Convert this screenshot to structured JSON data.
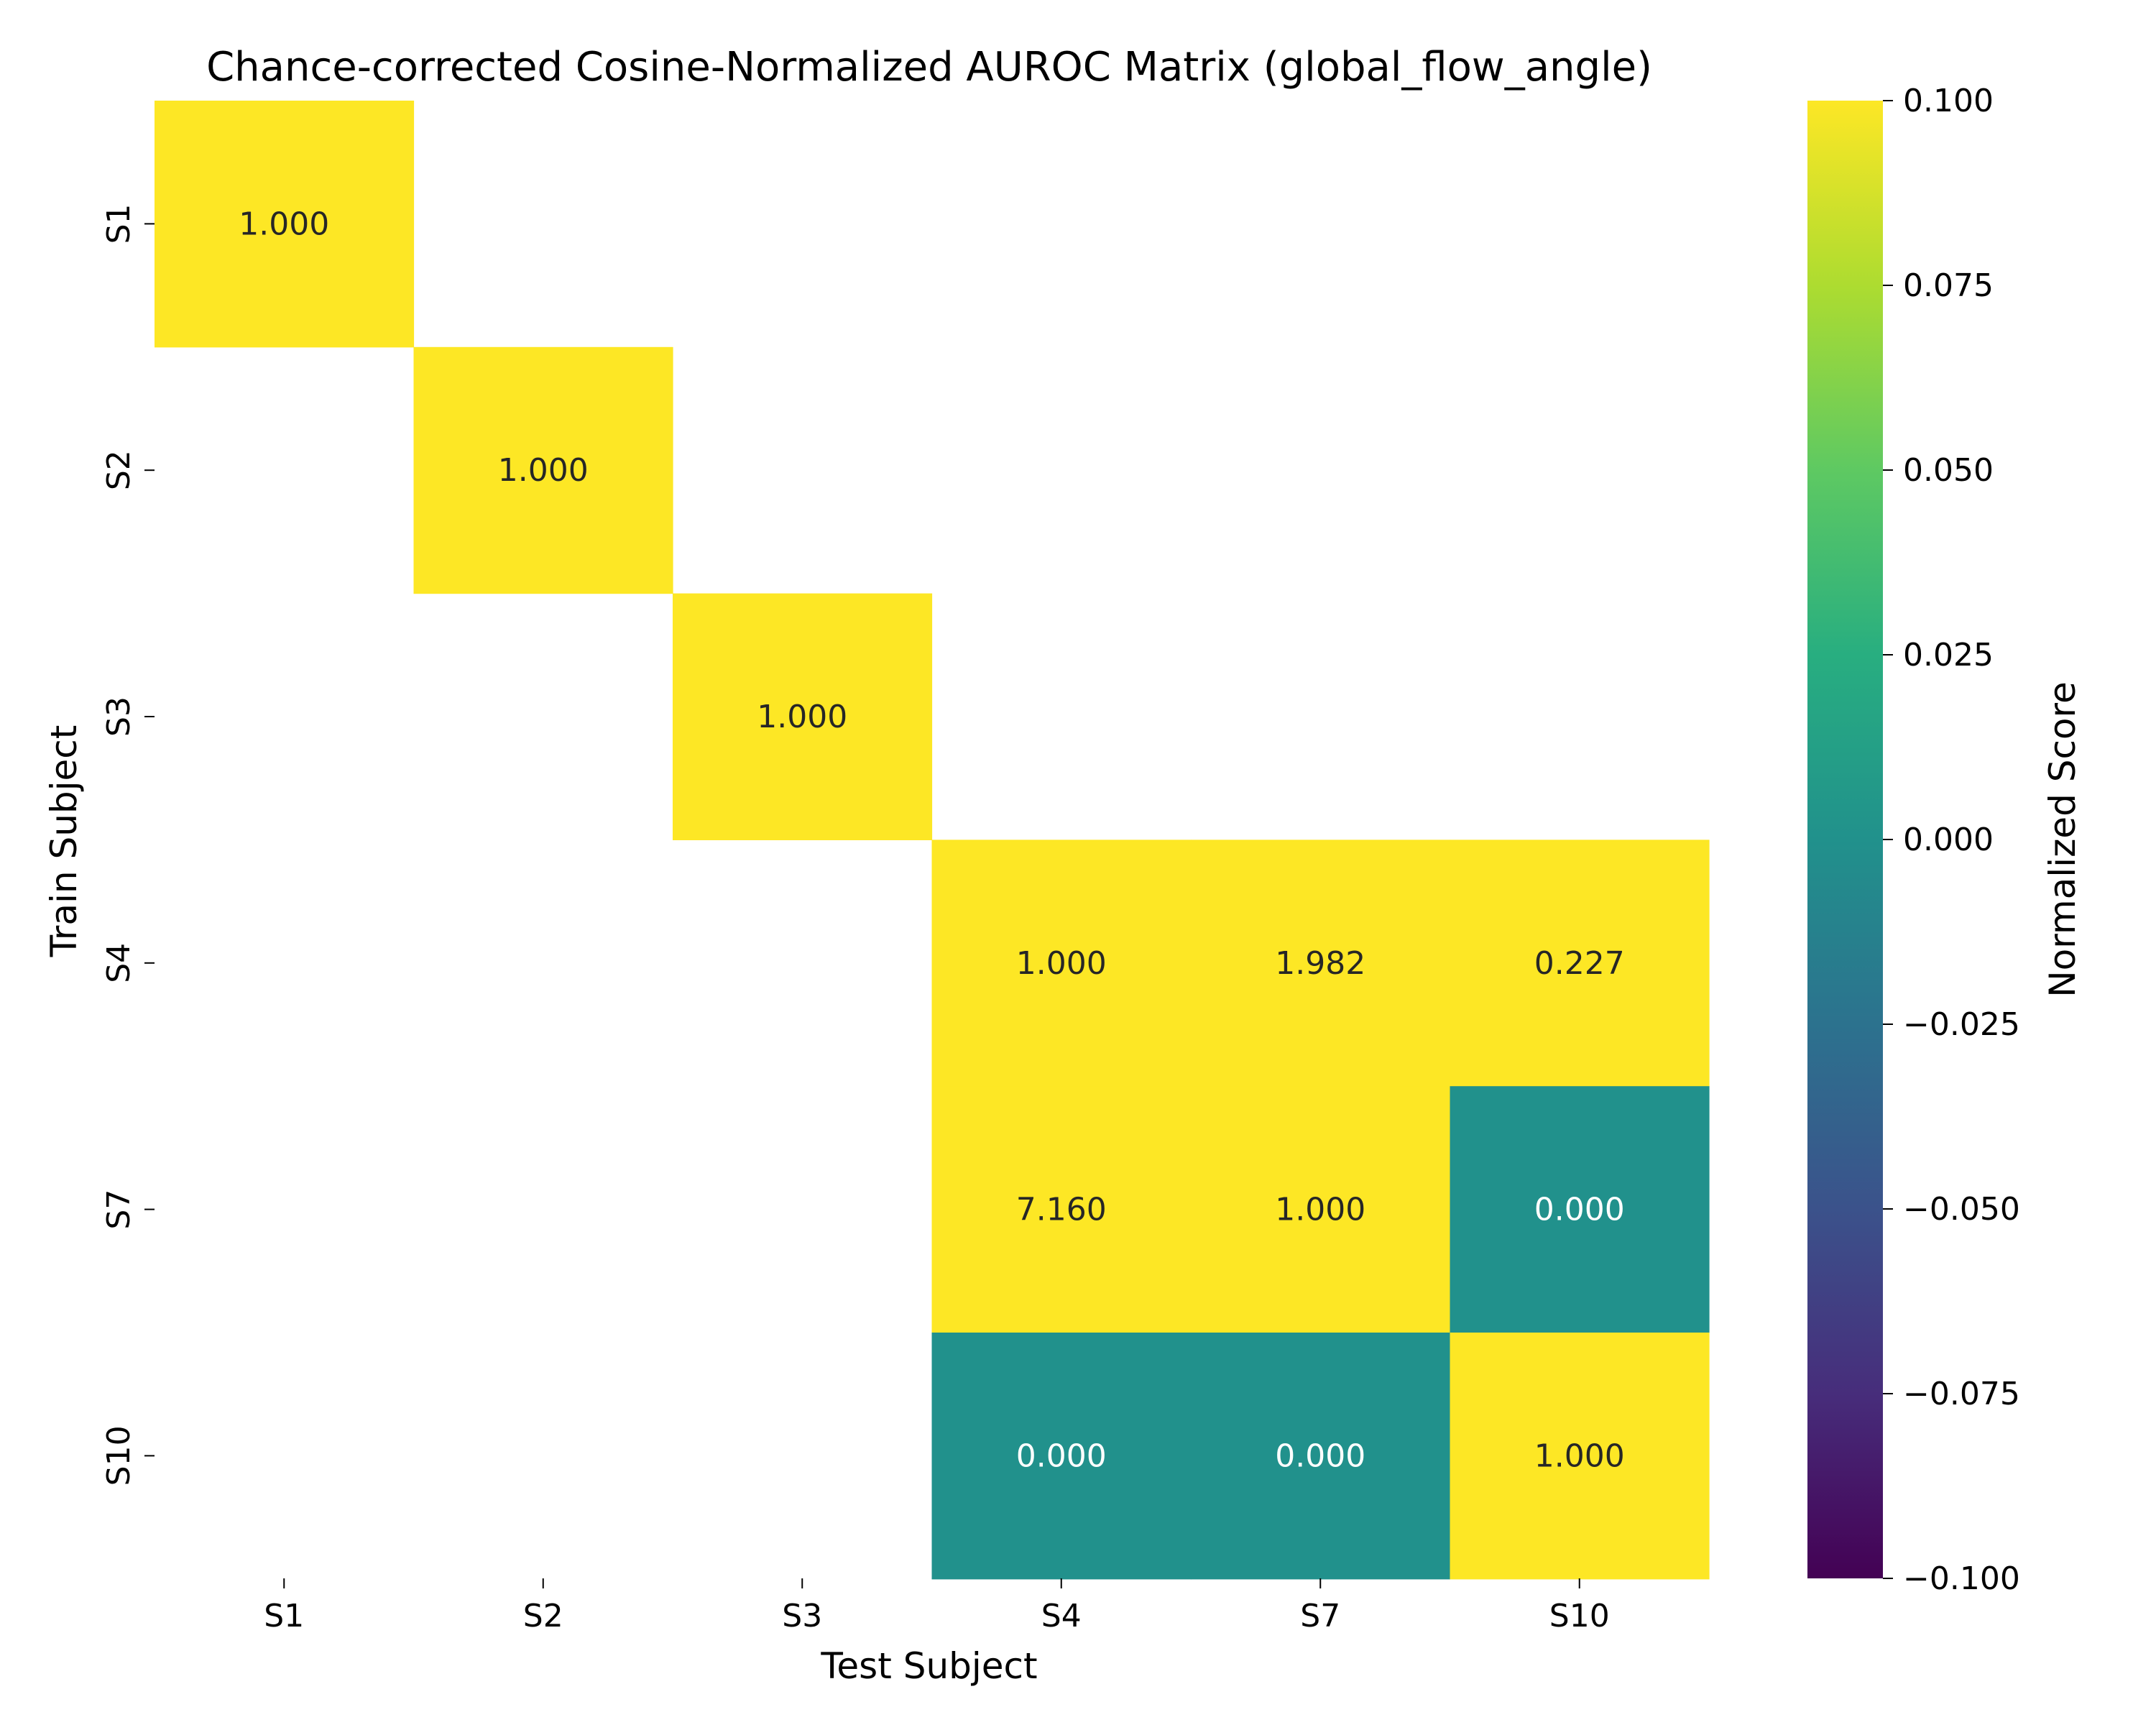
{
  "chart_data": {
    "type": "heatmap",
    "title": "Chance-corrected Cosine-Normalized AUROC Matrix (global_flow_angle)",
    "xlabel": "Test Subject",
    "ylabel": "Train Subject",
    "x_categories": [
      "S1",
      "S2",
      "S3",
      "S4",
      "S7",
      "S10"
    ],
    "y_categories": [
      "S1",
      "S2",
      "S3",
      "S4",
      "S7",
      "S10"
    ],
    "values": [
      [
        1.0,
        null,
        null,
        null,
        null,
        null
      ],
      [
        null,
        1.0,
        null,
        null,
        null,
        null
      ],
      [
        null,
        null,
        1.0,
        null,
        null,
        null
      ],
      [
        null,
        null,
        null,
        1.0,
        1.982,
        0.227
      ],
      [
        null,
        null,
        null,
        7.16,
        1.0,
        0.0
      ],
      [
        null,
        null,
        null,
        0.0,
        0.0,
        1.0
      ]
    ],
    "cell_labels": [
      [
        "1.000",
        "",
        "",
        "",
        "",
        ""
      ],
      [
        "",
        "1.000",
        "",
        "",
        "",
        ""
      ],
      [
        "",
        "",
        "1.000",
        "",
        "",
        ""
      ],
      [
        "",
        "",
        "",
        "1.000",
        "1.982",
        "0.227"
      ],
      [
        "",
        "",
        "",
        "7.160",
        "1.000",
        "0.000"
      ],
      [
        "",
        "",
        "",
        "0.000",
        "0.000",
        "1.000"
      ]
    ],
    "colormap": "viridis",
    "color_range": [
      -0.1,
      0.1
    ],
    "colorbar": {
      "label": "Normalized Score",
      "ticks": [
        0.1,
        0.075,
        0.05,
        0.025,
        0.0,
        -0.025,
        -0.05,
        -0.075,
        -0.1
      ],
      "tick_labels": [
        "0.100",
        "0.075",
        "0.050",
        "0.025",
        "0.000",
        "−0.025",
        "−0.050",
        "−0.075",
        "−0.100"
      ]
    }
  }
}
